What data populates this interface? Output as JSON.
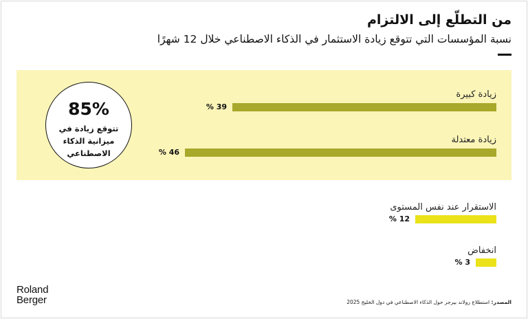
{
  "header": {
    "title": "من التطلّع إلى الالتزام",
    "subtitle": "نسبة المؤسسات التي تتوقع زيادة الاستثمار في الذكاء الاصطناعي خلال 12 شهرًا"
  },
  "callout": {
    "value": "85%",
    "text": "تتوقع زيادة في ميزانية الذكاء الاصطناعي"
  },
  "chart_data": {
    "type": "bar",
    "orientation": "horizontal",
    "title": "من التطلّع إلى الالتزام",
    "subtitle": "نسبة المؤسسات التي تتوقع زيادة الاستثمار في الذكاء الاصطناعي خلال 12 شهرًا",
    "categories": [
      "زيادة كبيرة",
      "زيادة معتدلة",
      "الاستقرار عند نفس المستوى",
      "انخفاض"
    ],
    "values": [
      39,
      46,
      12,
      3
    ],
    "value_labels": [
      "39 %",
      "46 %",
      "12 %",
      "3 %"
    ],
    "xlim": [
      0,
      46
    ],
    "grid": false,
    "legend": "none",
    "colors": {
      "increase": "#a8a82a",
      "other": "#ebe21a",
      "highlight_band": "#fbf5b8"
    }
  },
  "footer": {
    "logo_line1": "Roland",
    "logo_line2": "Berger",
    "source_label": "المصدر:",
    "source_text": " استطلاع رولاند بيرجر حول الذكاء الاصطناعي في دول الخليج 2025"
  }
}
